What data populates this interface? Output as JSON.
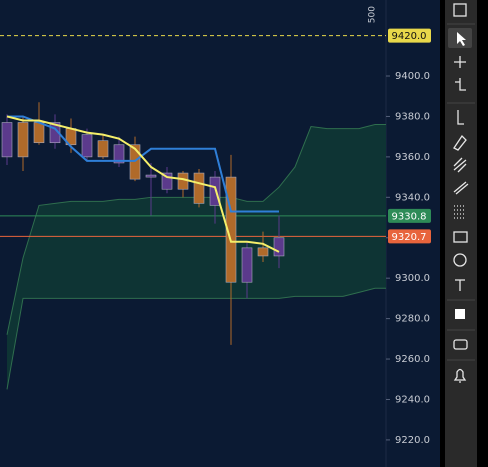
{
  "chart_data": {
    "type": "candlestick",
    "scale_label": "500",
    "categories": [
      null,
      null,
      null,
      null,
      null,
      null,
      null,
      null,
      null,
      null,
      null,
      null,
      null,
      null,
      null,
      null,
      null,
      null,
      null,
      null,
      null,
      null,
      null,
      null,
      null
    ],
    "open": [
      9377,
      9360,
      9367,
      9377,
      9366,
      9371,
      9360,
      9366,
      9349,
      9351,
      9352,
      9344,
      9337,
      9350,
      9298,
      9315,
      9311,
      9320,
      null,
      null,
      null,
      null,
      null,
      null,
      null
    ],
    "high": [
      9381,
      9380,
      9387,
      9381,
      9379,
      9374,
      9371,
      9370,
      9370,
      9357,
      9355,
      9353,
      9354,
      9353,
      9361,
      9318,
      9323,
      9331,
      null,
      null,
      null,
      null,
      null,
      null,
      null
    ],
    "low": [
      9356,
      9353,
      9366,
      9364,
      9362,
      9358,
      9359,
      9355,
      9348,
      9331,
      9342,
      9340,
      9335,
      9327,
      9267,
      9290,
      9308,
      9305,
      null,
      null,
      null,
      null,
      null,
      null,
      null
    ],
    "close": [
      9360,
      9377,
      9377,
      9367,
      9374,
      9360,
      9368,
      9357,
      9366,
      9350,
      9344,
      9352,
      9352,
      9336,
      9350,
      9298,
      9315,
      9311,
      null,
      null,
      null,
      null,
      null,
      null,
      null
    ],
    "up_color": "#b06a2a",
    "down_color": "#5b3a8c",
    "series": [
      {
        "role": "line",
        "color": "#f5ef6a",
        "values": [
          9380,
          9378,
          9378,
          9376,
          9374,
          9372,
          9371,
          9369,
          9364,
          9355,
          9350,
          9349,
          9347,
          9345,
          9318,
          9318,
          9317,
          9313,
          null,
          null,
          null,
          null,
          null,
          null,
          null
        ]
      },
      {
        "role": "line",
        "color": "#2f7fd8",
        "values": [
          9380,
          9380,
          9377,
          9374,
          9365,
          9358,
          9358,
          9358,
          9358,
          9364,
          9364,
          9364,
          9364,
          9364,
          9333,
          9333,
          9333,
          9333,
          null,
          null,
          null,
          null,
          null,
          null,
          null
        ]
      },
      {
        "role": "band-upper",
        "color": "#2f6e4e",
        "values": [
          9272,
          9310,
          9336,
          9337,
          9338,
          9338,
          9338,
          9339,
          9339,
          9340,
          9340,
          9340,
          9340,
          9340,
          9340,
          9338,
          9338,
          9345,
          9355,
          9375,
          9374,
          9374,
          9374,
          9376,
          9376
        ]
      },
      {
        "role": "band-lower",
        "color": "#2f6e4e",
        "values": [
          9245,
          9290,
          9290,
          9290,
          9290,
          9290,
          9290,
          9290,
          9290,
          9290,
          9290,
          9290,
          9290,
          9290,
          9290,
          9290,
          9290,
          9290,
          9291,
          9291,
          9291,
          9291,
          9293,
          9295,
          9295
        ]
      }
    ],
    "band_fill": "#0e3434",
    "price_lines": [
      {
        "value": 9420,
        "label": "9420.0",
        "color": "#e8d84a",
        "dashed": true
      },
      {
        "value": 9330.8,
        "label": "9330.8",
        "color": "#2e8b57",
        "dashed": false
      },
      {
        "value": 9320.7,
        "label": "9320.7",
        "color": "#e8643c",
        "dashed": false
      }
    ],
    "ylim": [
      9206.6,
      9437.6
    ],
    "yticks": [
      {
        "value": 9220,
        "label": "9220.0"
      },
      {
        "value": 9240,
        "label": "9240.0"
      },
      {
        "value": 9260,
        "label": "9260.0"
      },
      {
        "value": 9280,
        "label": "9280.0"
      },
      {
        "value": 9300,
        "label": "9300.0"
      },
      {
        "value": 9320,
        "label": "9320.0"
      },
      {
        "value": 9340,
        "label": "9340.0"
      },
      {
        "value": 9360,
        "label": "9360.0"
      },
      {
        "value": 9380,
        "label": "9380.0"
      },
      {
        "value": 9400,
        "label": "9400.0"
      }
    ]
  }
}
